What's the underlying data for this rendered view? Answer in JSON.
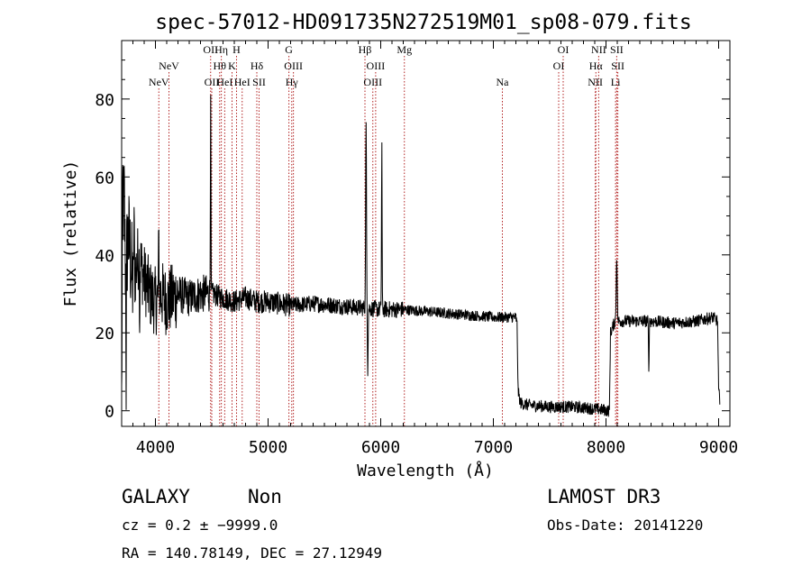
{
  "chart_data": {
    "type": "line",
    "title": "spec-57012-HD091735N272519M01_sp08-079.fits",
    "xlabel": "Wavelength (Å)",
    "ylabel": "Flux (relative)",
    "xlim": [
      3700,
      9100
    ],
    "ylim": [
      -4,
      95
    ],
    "xticks": [
      {
        "value": 4000,
        "label": "4000"
      },
      {
        "value": 5000,
        "label": "5000"
      },
      {
        "value": 6000,
        "label": "6000"
      },
      {
        "value": 7000,
        "label": "7000"
      },
      {
        "value": 8000,
        "label": "8000"
      },
      {
        "value": 9000,
        "label": "9000"
      }
    ],
    "yticks": [
      {
        "value": 0,
        "label": "0"
      },
      {
        "value": 20,
        "label": "20"
      },
      {
        "value": 40,
        "label": "40"
      },
      {
        "value": 60,
        "label": "60"
      },
      {
        "value": 80,
        "label": "80"
      }
    ],
    "line_color": "#000000",
    "marker_color": "#b22222",
    "line_markers": [
      {
        "wave": 4030,
        "label": "NeV",
        "row": 2
      },
      {
        "wave": 4120,
        "label": "NeV",
        "row": 1
      },
      {
        "wave": 4490,
        "label": "OII",
        "row": 0
      },
      {
        "wave": 4500,
        "label": "OII",
        "row": 2
      },
      {
        "wave": 4585,
        "label": "Hη",
        "row": 0
      },
      {
        "wave": 4570,
        "label": "Hθ",
        "row": 1
      },
      {
        "wave": 4615,
        "label": "HeI",
        "row": 2
      },
      {
        "wave": 4720,
        "label": "H",
        "row": 0
      },
      {
        "wave": 4680,
        "label": "K",
        "row": 1
      },
      {
        "wave": 4770,
        "label": "HeI",
        "row": 2
      },
      {
        "wave": 4900,
        "label": "Hδ",
        "row": 1
      },
      {
        "wave": 4920,
        "label": "SII",
        "row": 2
      },
      {
        "wave": 5185,
        "label": "G",
        "row": 0
      },
      {
        "wave": 5225,
        "label": "OIII",
        "row": 1
      },
      {
        "wave": 5210,
        "label": "Hγ",
        "row": 2
      },
      {
        "wave": 5860,
        "label": "Hβ",
        "row": 0
      },
      {
        "wave": 5955,
        "label": "OIII",
        "row": 1
      },
      {
        "wave": 5930,
        "label": "OIII",
        "row": 2
      },
      {
        "wave": 6210,
        "label": "Mg",
        "row": 0
      },
      {
        "wave": 7080,
        "label": "Na",
        "row": 2
      },
      {
        "wave": 7620,
        "label": "OI",
        "row": 0
      },
      {
        "wave": 7580,
        "label": "OI",
        "row": 1
      },
      {
        "wave": 7935,
        "label": "NII",
        "row": 0
      },
      {
        "wave": 7910,
        "label": "Hα",
        "row": 1
      },
      {
        "wave": 7905,
        "label": "NII",
        "row": 2
      },
      {
        "wave": 8095,
        "label": "SII",
        "row": 0
      },
      {
        "wave": 8105,
        "label": "SII",
        "row": 1
      },
      {
        "wave": 8085,
        "label": "Li",
        "row": 2
      }
    ],
    "spectrum_anchors": [
      [
        3700,
        2
      ],
      [
        3710,
        58
      ],
      [
        3730,
        35
      ],
      [
        3760,
        45
      ],
      [
        3800,
        32
      ],
      [
        3850,
        40
      ],
      [
        3900,
        34
      ],
      [
        3950,
        30
      ],
      [
        4000,
        28
      ],
      [
        4050,
        30
      ],
      [
        4100,
        28
      ],
      [
        4200,
        30
      ],
      [
        4300,
        29
      ],
      [
        4400,
        30
      ],
      [
        4500,
        30
      ],
      [
        4600,
        29
      ],
      [
        4700,
        28
      ],
      [
        4800,
        29
      ],
      [
        4900,
        28
      ],
      [
        5000,
        28
      ],
      [
        5200,
        27
      ],
      [
        5400,
        27.5
      ],
      [
        5600,
        27
      ],
      [
        5800,
        26.5
      ],
      [
        6000,
        26
      ],
      [
        6200,
        26
      ],
      [
        6400,
        25.5
      ],
      [
        6600,
        25
      ],
      [
        6800,
        24.5
      ],
      [
        7000,
        24
      ],
      [
        7200,
        24
      ],
      [
        7210,
        22
      ],
      [
        7220,
        5
      ],
      [
        7240,
        2
      ],
      [
        7300,
        1.5
      ],
      [
        7500,
        1
      ],
      [
        7700,
        1
      ],
      [
        7900,
        0.5
      ],
      [
        8030,
        0
      ],
      [
        8040,
        20
      ],
      [
        8080,
        23
      ],
      [
        8200,
        23
      ],
      [
        8400,
        23
      ],
      [
        8600,
        22.5
      ],
      [
        8800,
        23
      ],
      [
        8950,
        24
      ],
      [
        8990,
        23
      ],
      [
        9000,
        5
      ],
      [
        9010,
        3
      ]
    ],
    "features": [
      {
        "wave": 3725,
        "amp": 12,
        "width": 6
      },
      {
        "wave": 4490,
        "amp": 55,
        "width": 3
      },
      {
        "wave": 5870,
        "amp": 47,
        "width": 5
      },
      {
        "wave": 5885,
        "amp": -16,
        "width": 4
      },
      {
        "wave": 6008,
        "amp": 12,
        "width": 4
      },
      {
        "wave": 6010,
        "amp": 33,
        "width": 3
      },
      {
        "wave": 8095,
        "amp": 17,
        "width": 6
      },
      {
        "wave": 8380,
        "amp": -13,
        "width": 4
      },
      {
        "wave": 3740,
        "amp": -30,
        "width": 3
      },
      {
        "wave": 3810,
        "amp": 18,
        "width": 3
      },
      {
        "wave": 3860,
        "amp": -15,
        "width": 3
      },
      {
        "wave": 4030,
        "amp": 14,
        "width": 4
      }
    ]
  },
  "footer": {
    "object_class": "GALAXY",
    "subclass": "Non",
    "survey": "LAMOST DR3",
    "redshift": "cz = 0.2 ± −9999.0",
    "obs_date": "Obs-Date: 20141220",
    "coords": "RA = 140.78149, DEC =  27.12949"
  }
}
